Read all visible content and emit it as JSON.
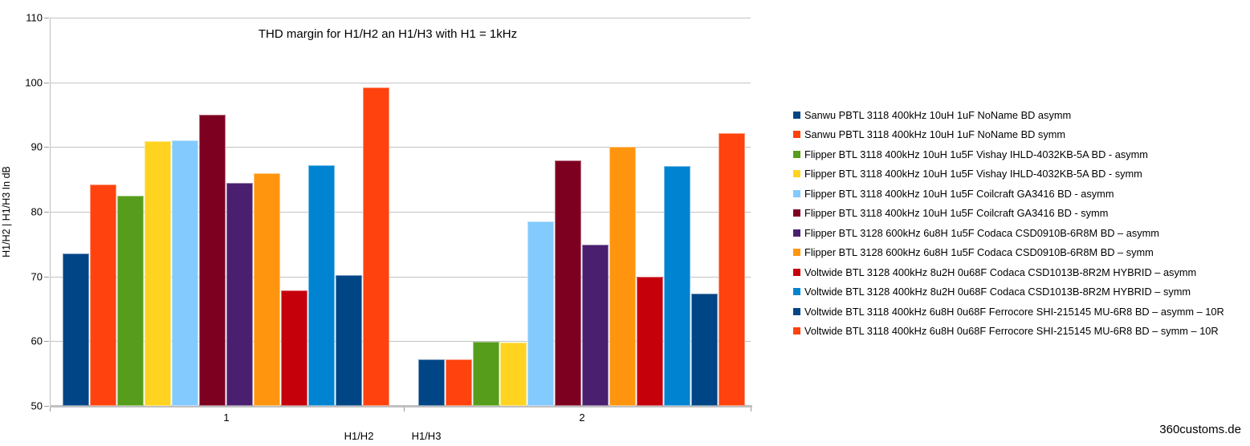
{
  "footer": {
    "watermark": "360customs.de"
  },
  "chart_data": {
    "type": "bar",
    "title": "THD margin for H1/H2 an H1/H3 with H1 = 1kHz",
    "y_axis_title": "H1/H2 | H1/H3 In dB",
    "x_axis_labels": [
      "H1/H2",
      "H1/H3"
    ],
    "categories": [
      "1",
      "2"
    ],
    "ylim": [
      50,
      110
    ],
    "y_tick_step": 10,
    "y_ticks": [
      110,
      100,
      90,
      80,
      70,
      60,
      50
    ],
    "grid": true,
    "legend_position": "right",
    "series": [
      {
        "name": "Sanwu PBTL 3118 400kHz 10uH 1uF NoName BD asymm",
        "color": "#004586",
        "values": [
          73.5,
          57.1
        ]
      },
      {
        "name": "Sanwu PBTL 3118 400kHz 10uH 1uF NoName BD symm",
        "color": "#FF420E",
        "values": [
          84.2,
          57.1
        ]
      },
      {
        "name": "Flipper BTL 3118 400kHz 10uH 1u5F Vishay IHLD-4032KB-5A BD -  asymm",
        "color": "#579D1C",
        "values": [
          82.5,
          59.9
        ]
      },
      {
        "name": "Flipper BTL 3118 400kHz 10uH 1u5F Vishay IHLD-4032KB-5A BD -  symm",
        "color": "#FFD320",
        "values": [
          90.9,
          59.8
        ]
      },
      {
        "name": "Flipper BTL 3118 400kHz 10uH 1u5F Coilcraft GA3416 BD -  asymm",
        "color": "#83CAFF",
        "values": [
          91.1,
          78.5
        ]
      },
      {
        "name": "Flipper BTL 3118 400kHz 10uH 1u5F Coilcraft GA3416 BD -  symm",
        "color": "#7E0021",
        "values": [
          95.0,
          88.0
        ]
      },
      {
        "name": "Flipper BTL 3128 600kHz 6u8H 1u5F Codaca CSD0910B-6R8M BD – asymm",
        "color": "#4B1F6F",
        "values": [
          84.5,
          74.9
        ]
      },
      {
        "name": "Flipper BTL 3128 600kHz 6u8H 1u5F Codaca CSD0910B-6R8M BD – symm",
        "color": "#FF950E",
        "values": [
          86.0,
          90.0
        ]
      },
      {
        "name": "Voltwide BTL 3128 400kHz 8u2H 0u68F Codaca CSD1013B-8R2M HYBRID – asymm",
        "color": "#C5000B",
        "values": [
          67.8,
          69.9
        ]
      },
      {
        "name": "Voltwide BTL 3128 400kHz 8u2H 0u68F Codaca CSD1013B-8R2M HYBRID – symm",
        "color": "#0084D1",
        "values": [
          87.2,
          87.1
        ]
      },
      {
        "name": "Voltwide BTL 3118 400kHz 6u8H 0u68F Ferrocore SHI-215145 MU-6R8 BD – asymm – 10R",
        "color": "#004586",
        "values": [
          70.2,
          67.3
        ]
      },
      {
        "name": "Voltwide BTL 3118 400kHz 6u8H 0u68F Ferrocore SHI-215145 MU-6R8 BD – symm – 10R",
        "color": "#FF420E",
        "values": [
          99.2,
          92.2
        ]
      }
    ]
  }
}
